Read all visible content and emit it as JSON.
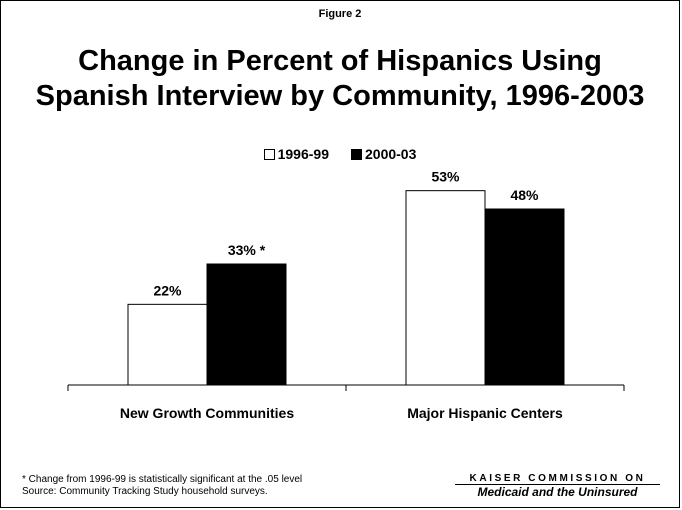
{
  "figure_label": "Figure 2",
  "title_line1": "Change in Percent of Hispanics Using",
  "title_line2": "Spanish Interview by Community, 1996-2003",
  "colors": {
    "series1": "#ffffff",
    "series2": "#000000",
    "stroke": "#000000"
  },
  "chart_data": {
    "type": "bar",
    "categories": [
      "New Growth Communities",
      "Major Hispanic Centers"
    ],
    "series": [
      {
        "name": "1996-99",
        "values": [
          22,
          53
        ],
        "labels": [
          "22%",
          "53%"
        ]
      },
      {
        "name": "2000-03",
        "values": [
          33,
          48
        ],
        "labels": [
          "33% *",
          "48%"
        ]
      }
    ],
    "ylim": [
      0,
      60
    ],
    "grid": false,
    "legend_position": "top-center"
  },
  "footnote_line1": "* Change from 1996-99 is statistically significant at the .05 level",
  "footnote_line2": "Source: Community Tracking Study household surveys.",
  "brand_line1": "KAISER COMMISSION ON",
  "brand_line2": "Medicaid and the Uninsured"
}
